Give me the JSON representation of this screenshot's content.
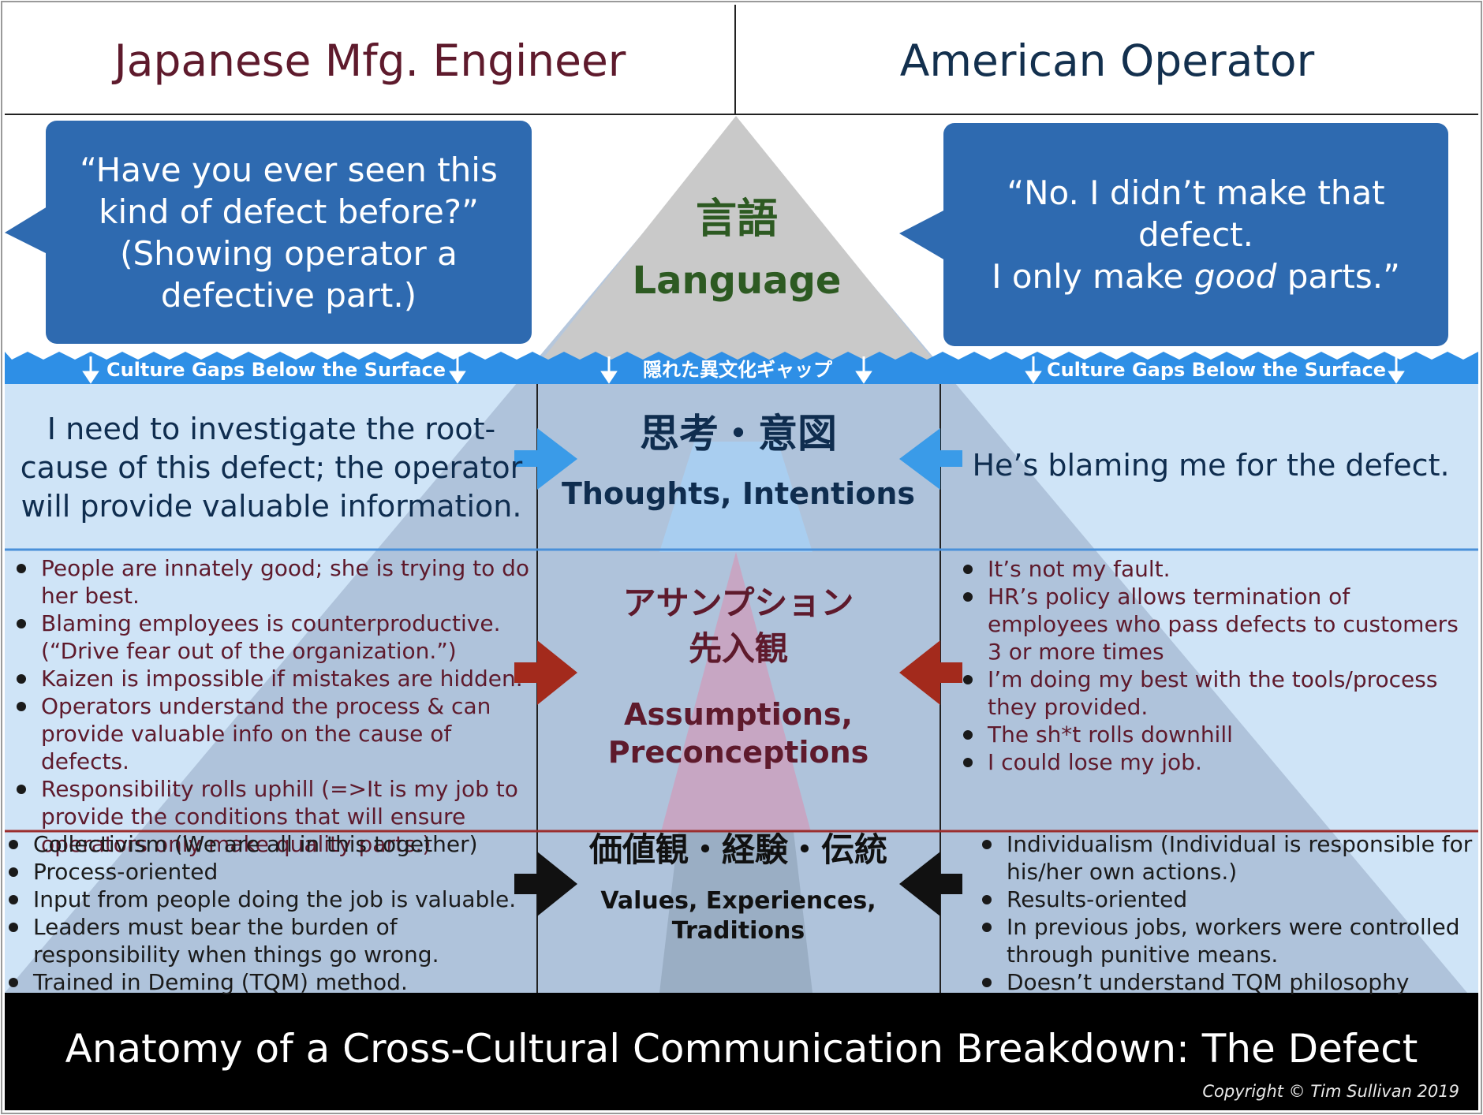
{
  "header": {
    "left_title": "Japanese Mfg. Engineer",
    "right_title": "American Operator"
  },
  "bubbles": {
    "left_quote": "“Have you ever seen this kind of defect before?” (Showing operator a defective part.)",
    "right_quote_line1": "“No. I didn’t make that defect.",
    "right_quote_line2_pre": "I only make ",
    "right_quote_line2_em": "good",
    "right_quote_line2_post": " parts.”"
  },
  "tip": {
    "kanji": "言語",
    "label": "Language"
  },
  "surface_band": {
    "left_label": "Culture Gaps Below the Surface",
    "center_label": "隠れた異文化ギャップ",
    "right_label": "Culture Gaps Below the Surface"
  },
  "thoughts": {
    "left_text": "I need to investigate the root-cause of this defect; the operator will provide valuable information.",
    "center_kanji": "思考・意図",
    "center_label": "Thoughts, Intentions",
    "right_text": "He’s blaming me for the defect."
  },
  "assumptions": {
    "left_items": [
      "People are innately good; she is trying to do her best.",
      "Blaming employees is counterproductive. (“Drive fear out of the organization.”)",
      "Kaizen is impossible if mistakes are hidden.",
      "Operators understand the process & can provide valuable info on the cause of defects.",
      "Responsibility rolls uphill (=>It is my job to provide the conditions that will ensure operators only make quality parts.)"
    ],
    "center_kanji_line1": "アサンプション",
    "center_kanji_line2": "先入観",
    "center_label_line1": "Assumptions,",
    "center_label_line2": "Preconceptions",
    "right_items": [
      "It’s not my fault.",
      "HR’s policy allows termination of employees who pass defects to customers 3 or more times",
      "I’m doing my best with the tools/process they provided.",
      "The sh*t rolls downhill",
      "I could lose my job."
    ]
  },
  "values": {
    "left_items": [
      "Collectivism (We are all in this together)",
      "Process-oriented",
      "Input from people doing the job is valuable.",
      "Leaders must bear the burden of responsibility when things go wrong.",
      "Trained in Deming (TQM) method."
    ],
    "center_kanji": "価値観・経験・伝統",
    "center_label_line1": "Values, Experiences,",
    "center_label_line2": "Traditions",
    "right_items": [
      "Individualism (Individual is responsible for his/her own actions.)",
      "Results-oriented",
      "In previous jobs, workers were controlled through punitive means.",
      "Doesn’t understand TQM philosophy"
    ]
  },
  "footer": {
    "title": "Anatomy of a Cross-Cultural Communication Breakdown: The Defect",
    "copyright": "Copyright © Tim Sullivan 2019"
  },
  "colors": {
    "bubble_blue": "#2e6ab0",
    "water_blue": "#cfe4f7",
    "wave_blue": "#2e8fe6",
    "deep_triangle": "#a9bdd6",
    "red_arrow": "#a32a1c",
    "blue_arrow": "#3a9be8",
    "black_arrow": "#111111",
    "header_red": "#5e1a2c",
    "header_blue": "#13304e"
  }
}
